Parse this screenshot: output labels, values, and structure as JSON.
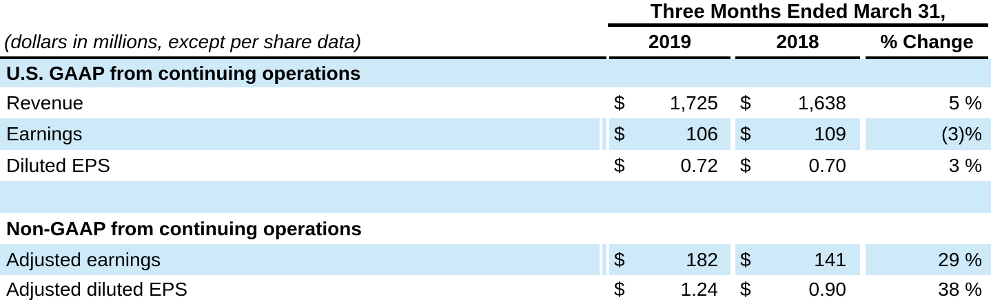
{
  "table": {
    "period_header": "Three Months Ended March 31,",
    "note": "(dollars in millions, except per share data)",
    "columns": {
      "y2019": "2019",
      "y2018": "2018",
      "pct": "% Change"
    },
    "colors": {
      "highlight": "#cee9f8",
      "rule": "#000000",
      "text": "#000000"
    },
    "sections": {
      "gaap": "U.S. GAAP from continuing operations",
      "non_gaap": "Non-GAAP from continuing operations"
    },
    "rows": [
      {
        "label": "U.S. GAAP from continuing operations",
        "type": "section"
      },
      {
        "label": "Revenue",
        "cur1": "$",
        "v2019": "1,725",
        "cur2": "$",
        "v2018": "1,638",
        "pct": "5 %"
      },
      {
        "label": "Earnings",
        "cur1": "$",
        "v2019": "106",
        "cur2": "$",
        "v2018": "109",
        "pct": "(3)%"
      },
      {
        "label": "Diluted EPS",
        "cur1": "$",
        "v2019": "0.72",
        "cur2": "$",
        "v2018": "0.70",
        "pct": "3 %"
      },
      {
        "label": "",
        "type": "spacer"
      },
      {
        "label": "Non-GAAP from continuing operations",
        "type": "section"
      },
      {
        "label": "Adjusted earnings",
        "cur1": "$",
        "v2019": "182",
        "cur2": "$",
        "v2018": "141",
        "pct": "29 %"
      },
      {
        "label": "Adjusted diluted EPS",
        "cur1": "$",
        "v2019": "1.24",
        "cur2": "$",
        "v2018": "0.90",
        "pct": "38 %"
      }
    ]
  }
}
